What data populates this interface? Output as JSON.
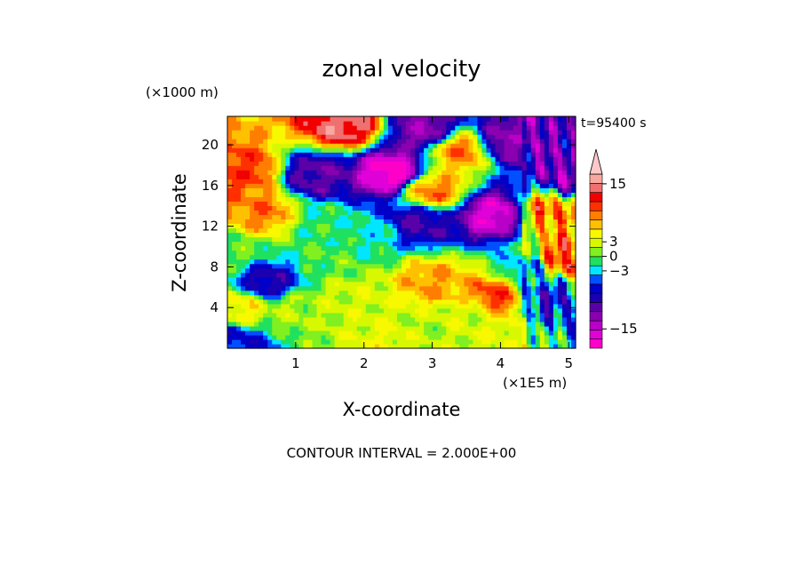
{
  "chart_data": {
    "type": "heatmap",
    "title": "zonal velocity",
    "xlabel": "X-coordinate",
    "ylabel": "Z-coordinate",
    "x_unit": "(×1E5 m)",
    "y_unit": "(×1000 m)",
    "time_label": "t=95400 s",
    "footer": "CONTOUR INTERVAL = 2.000E+00",
    "xlim": [
      0,
      5.1
    ],
    "ylim": [
      0,
      22.8
    ],
    "x_ticks": [
      1,
      2,
      3,
      4,
      5
    ],
    "x_tick_labels": [
      "1",
      "2",
      "3",
      "4",
      "5"
    ],
    "y_ticks": [
      4,
      8,
      12,
      16,
      20
    ],
    "y_tick_labels": [
      "4",
      "8",
      "12",
      "16",
      "20"
    ],
    "colorbar": {
      "levels": [
        -19,
        -17,
        -15,
        -13,
        -11,
        -9,
        -7,
        -5,
        -3,
        -1,
        1,
        3,
        5,
        7,
        9,
        11,
        13,
        15,
        17,
        19
      ],
      "tick_values": [
        15,
        3,
        0,
        -3,
        -15
      ],
      "tick_labels": [
        "15",
        "3",
        "0",
        "−3",
        "−15"
      ],
      "colors": [
        "#ff00c8",
        "#e000d8",
        "#b800c8",
        "#8a00b0",
        "#5a00a8",
        "#1a00b0",
        "#0000c8",
        "#0050ff",
        "#00e6ff",
        "#20e060",
        "#80f020",
        "#d8f800",
        "#f8f800",
        "#ffc000",
        "#ff7e00",
        "#ff3000",
        "#f00000",
        "#f07070",
        "#f8a8a0",
        "#ffc8c8"
      ],
      "extend": "max"
    },
    "field_features": [
      {
        "x": 1.7,
        "z": 22.0,
        "value": 16
      },
      {
        "x": 2.9,
        "z": 21.5,
        "value": -12
      },
      {
        "x": 2.4,
        "z": 17.3,
        "value": -18
      },
      {
        "x": 1.3,
        "z": 17.0,
        "value": -10
      },
      {
        "x": 0.25,
        "z": 17.5,
        "value": 12
      },
      {
        "x": 0.5,
        "z": 13.5,
        "value": 10
      },
      {
        "x": 3.4,
        "z": 19.5,
        "value": 10
      },
      {
        "x": 4.1,
        "z": 20.5,
        "value": -12
      },
      {
        "x": 3.0,
        "z": 15.5,
        "value": 10
      },
      {
        "x": 3.9,
        "z": 13.2,
        "value": -16
      },
      {
        "x": 2.8,
        "z": 12.5,
        "value": -9
      },
      {
        "x": 4.7,
        "z": 13.5,
        "value": 10
      },
      {
        "x": 1.4,
        "z": 12.0,
        "value": 0
      },
      {
        "x": 2.1,
        "z": 11.0,
        "value": -1
      },
      {
        "x": 1.8,
        "z": 5.0,
        "value": 4
      },
      {
        "x": 1.0,
        "z": 4.0,
        "value": 3
      },
      {
        "x": 3.6,
        "z": 3.5,
        "value": 4
      },
      {
        "x": 2.9,
        "z": 2.0,
        "value": 3
      },
      {
        "x": 0.6,
        "z": 6.5,
        "value": -8
      },
      {
        "x": 0.2,
        "z": 4.0,
        "value": 6
      },
      {
        "x": 3.0,
        "z": 6.5,
        "value": 9
      },
      {
        "x": 3.9,
        "z": 5.0,
        "value": 12
      },
      {
        "x": 4.4,
        "z": 8.0,
        "value": -3
      },
      {
        "x": 4.7,
        "z": 5.0,
        "value": -6
      },
      {
        "x": 4.9,
        "z": 9.0,
        "value": 12
      },
      {
        "x": 5.05,
        "z": 17.0,
        "value": -12
      },
      {
        "x": 2.4,
        "z": 0.8,
        "value": 5
      },
      {
        "x": 1.5,
        "z": 9.0,
        "value": 1
      },
      {
        "x": 0.1,
        "z": 0.7,
        "value": -6
      },
      {
        "x": 0.05,
        "z": 9.5,
        "value": 1
      }
    ]
  }
}
